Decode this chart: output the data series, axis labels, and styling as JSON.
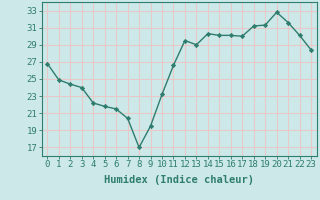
{
  "x": [
    0,
    1,
    2,
    3,
    4,
    5,
    6,
    7,
    8,
    9,
    10,
    11,
    12,
    13,
    14,
    15,
    16,
    17,
    18,
    19,
    20,
    21,
    22,
    23
  ],
  "y": [
    26.8,
    24.9,
    24.4,
    24.0,
    22.2,
    21.8,
    21.5,
    20.4,
    17.0,
    19.5,
    23.2,
    26.6,
    29.5,
    29.0,
    30.3,
    30.1,
    30.1,
    30.0,
    31.2,
    31.3,
    32.8,
    31.6,
    30.1,
    28.4
  ],
  "line_color": "#2e7d6e",
  "marker": "D",
  "marker_size": 2.2,
  "bg_color": "#cce8e8",
  "grid_color": "#e8c8c8",
  "xlabel": "Humidex (Indice chaleur)",
  "ylim": [
    16,
    34
  ],
  "yticks": [
    17,
    19,
    21,
    23,
    25,
    27,
    29,
    31,
    33
  ],
  "xticks": [
    0,
    1,
    2,
    3,
    4,
    5,
    6,
    7,
    8,
    9,
    10,
    11,
    12,
    13,
    14,
    15,
    16,
    17,
    18,
    19,
    20,
    21,
    22,
    23
  ],
  "tick_color": "#2e7d6e",
  "xlabel_fontsize": 7.5,
  "tick_fontsize": 6.5,
  "linewidth": 1.0
}
